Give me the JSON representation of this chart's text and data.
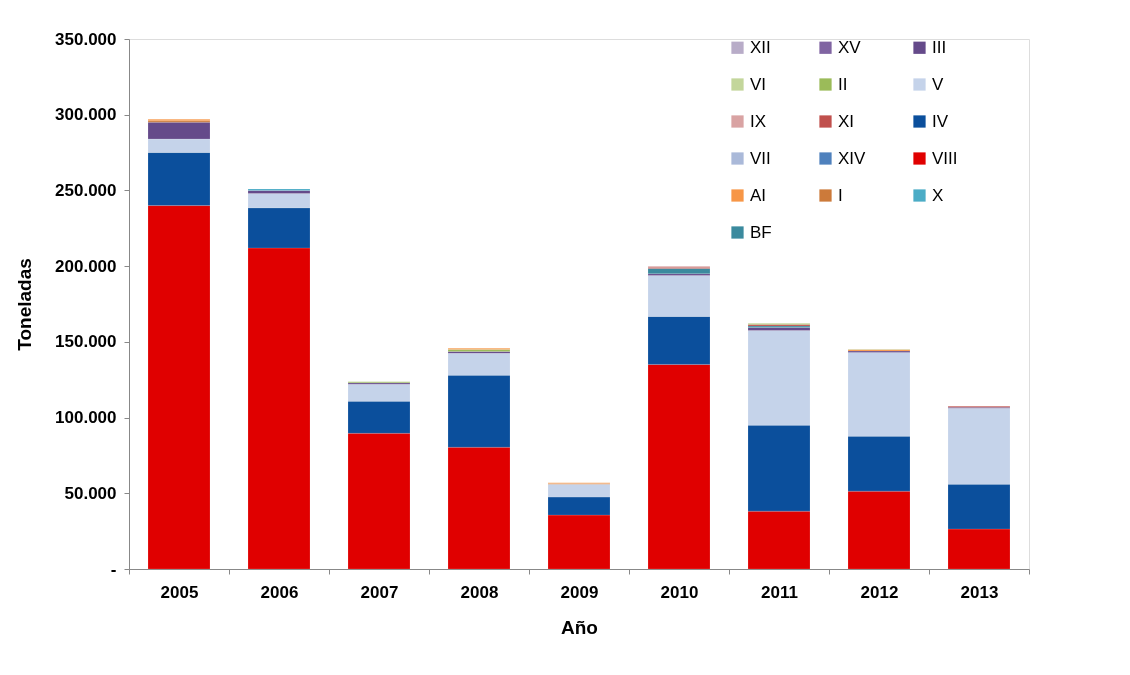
{
  "chart_data": {
    "type": "bar",
    "stacked": true,
    "xlabel": "Año",
    "ylabel": "Toneladas",
    "categories": [
      "2005",
      "2006",
      "2007",
      "2008",
      "2009",
      "2010",
      "2011",
      "2012",
      "2013"
    ],
    "ylim": [
      0,
      350000
    ],
    "yticks": [
      {
        "value": 0,
        "label": "-"
      },
      {
        "value": 50000,
        "label": "50.000"
      },
      {
        "value": 100000,
        "label": "100.000"
      },
      {
        "value": 150000,
        "label": "150.000"
      },
      {
        "value": 200000,
        "label": "200.000"
      },
      {
        "value": 250000,
        "label": "250.000"
      },
      {
        "value": 300000,
        "label": "300.000"
      },
      {
        "value": 350000,
        "label": "350.000"
      }
    ],
    "grid": false,
    "legend": "top right",
    "series": [
      {
        "name": "VIII",
        "color": "#e00000",
        "values": [
          240000,
          212000,
          89600,
          80400,
          35600,
          135100,
          38200,
          51400,
          26400
        ]
      },
      {
        "name": "IV",
        "color": "#0b4f9c",
        "values": [
          35000,
          26500,
          21100,
          47500,
          11900,
          31700,
          56800,
          36300,
          29600
        ]
      },
      {
        "name": "V",
        "color": "#c5d3ea",
        "values": [
          9000,
          9500,
          11300,
          14500,
          8500,
          27000,
          62500,
          55300,
          50100
        ]
      },
      {
        "name": "III",
        "color": "#654a8a",
        "values": [
          11000,
          2000,
          1000,
          1300,
          null,
          1200,
          2000,
          1000,
          700
        ]
      },
      {
        "name": "BF",
        "color": "#3b8a9e",
        "values": [
          null,
          null,
          null,
          null,
          null,
          3500,
          1000,
          null,
          null
        ]
      },
      {
        "name": "I",
        "color": "#cc7a3a",
        "values": [
          1000,
          null,
          null,
          null,
          500,
          null,
          null,
          null,
          null
        ]
      },
      {
        "name": "XIV",
        "color": "#4f81bd",
        "values": [
          null,
          null,
          null,
          null,
          null,
          null,
          null,
          null,
          null
        ]
      },
      {
        "name": "XI",
        "color": "#c0504d",
        "values": [
          null,
          null,
          null,
          null,
          null,
          800,
          1000,
          null,
          700
        ]
      },
      {
        "name": "II",
        "color": "#9bbb59",
        "values": [
          null,
          null,
          700,
          1300,
          null,
          null,
          500,
          null,
          null
        ]
      },
      {
        "name": "XV",
        "color": "#8064a2",
        "values": [
          null,
          null,
          null,
          null,
          null,
          null,
          null,
          null,
          null
        ]
      },
      {
        "name": "X",
        "color": "#4bacc6",
        "values": [
          null,
          1000,
          null,
          null,
          null,
          null,
          null,
          null,
          null
        ]
      },
      {
        "name": "AI",
        "color": "#f79646",
        "values": [
          1000,
          null,
          null,
          700,
          500,
          null,
          null,
          1000,
          null
        ]
      },
      {
        "name": "VII",
        "color": "#aab9d9",
        "values": [
          null,
          null,
          null,
          null,
          null,
          null,
          null,
          null,
          null
        ]
      },
      {
        "name": "IX",
        "color": "#d9a3a3",
        "values": [
          null,
          null,
          null,
          null,
          null,
          700,
          null,
          null,
          null
        ]
      },
      {
        "name": "VI",
        "color": "#c3d69b",
        "values": [
          null,
          null,
          null,
          null,
          null,
          null,
          500,
          300,
          null
        ]
      },
      {
        "name": "XII",
        "color": "#b8acc8",
        "values": [
          null,
          null,
          null,
          null,
          null,
          null,
          null,
          null,
          null
        ]
      }
    ]
  }
}
